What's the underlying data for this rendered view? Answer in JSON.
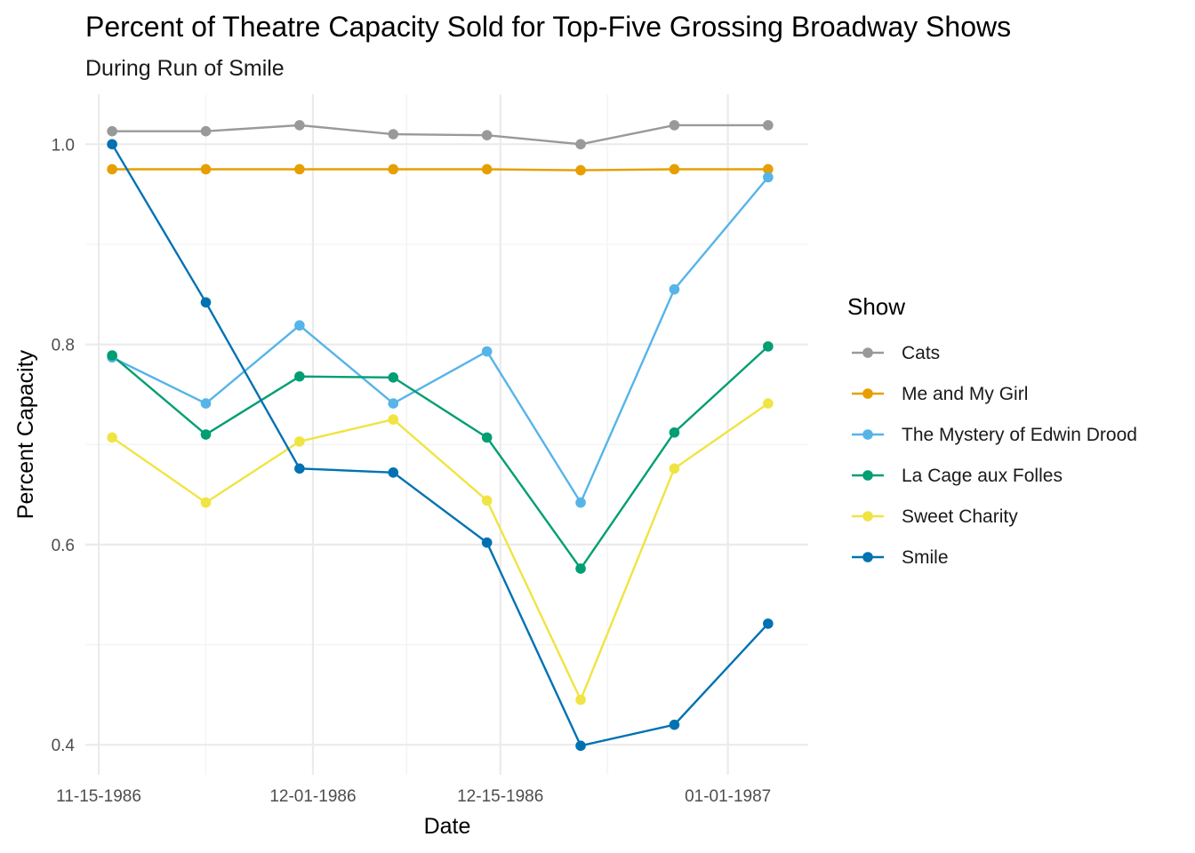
{
  "chart_data": {
    "type": "line",
    "title": "Percent of Theatre Capacity Sold for Top-Five Grossing Broadway Shows",
    "subtitle": "During Run of Smile",
    "xlabel": "Date",
    "ylabel": "Percent Capacity",
    "x": [
      "1986-11-16",
      "1986-11-23",
      "1986-11-30",
      "1986-12-07",
      "1986-12-14",
      "1986-12-21",
      "1986-12-28",
      "1987-01-04"
    ],
    "x_ticks": [
      {
        "date": "1986-11-15",
        "label": "11-15-1986"
      },
      {
        "date": "1986-12-01",
        "label": "12-01-1986"
      },
      {
        "date": "1986-12-15",
        "label": "12-15-1986"
      },
      {
        "date": "1987-01-01",
        "label": "01-01-1987"
      }
    ],
    "x_minor_ticks": [
      "1986-11-23",
      "1986-12-08",
      "1986-12-23"
    ],
    "xlim": [
      "1986-11-14",
      "1987-01-07"
    ],
    "ylim": [
      0.37,
      1.05
    ],
    "y_ticks": [
      0.4,
      0.6,
      0.8,
      1.0
    ],
    "y_tick_labels": [
      "0.4",
      "0.6",
      "0.8",
      "1.0"
    ],
    "y_minor_ticks": [
      0.5,
      0.7,
      0.9
    ],
    "grid": true,
    "legend_title": "Show",
    "legend_position": "right",
    "series": [
      {
        "name": "Cats",
        "color": "#999999",
        "values": [
          1.013,
          1.013,
          1.019,
          1.01,
          1.009,
          1.0,
          1.019,
          1.019
        ]
      },
      {
        "name": "Me and My Girl",
        "color": "#E69F00",
        "values": [
          0.975,
          0.975,
          0.975,
          0.975,
          0.975,
          0.974,
          0.975,
          0.975
        ]
      },
      {
        "name": "The Mystery of Edwin Drood",
        "color": "#56B4E9",
        "values": [
          0.787,
          0.741,
          0.819,
          0.741,
          0.793,
          0.642,
          0.855,
          0.967
        ]
      },
      {
        "name": "La Cage aux Folles",
        "color": "#009E73",
        "values": [
          0.789,
          0.71,
          0.768,
          0.767,
          0.707,
          0.576,
          0.712,
          0.798
        ]
      },
      {
        "name": "Sweet Charity",
        "color": "#F0E442",
        "values": [
          0.707,
          0.642,
          0.703,
          0.725,
          0.644,
          0.445,
          0.676,
          0.741
        ]
      },
      {
        "name": "Smile",
        "color": "#0072B2",
        "values": [
          1.0,
          0.842,
          0.676,
          0.672,
          0.602,
          0.399,
          0.42,
          0.521
        ]
      }
    ]
  }
}
